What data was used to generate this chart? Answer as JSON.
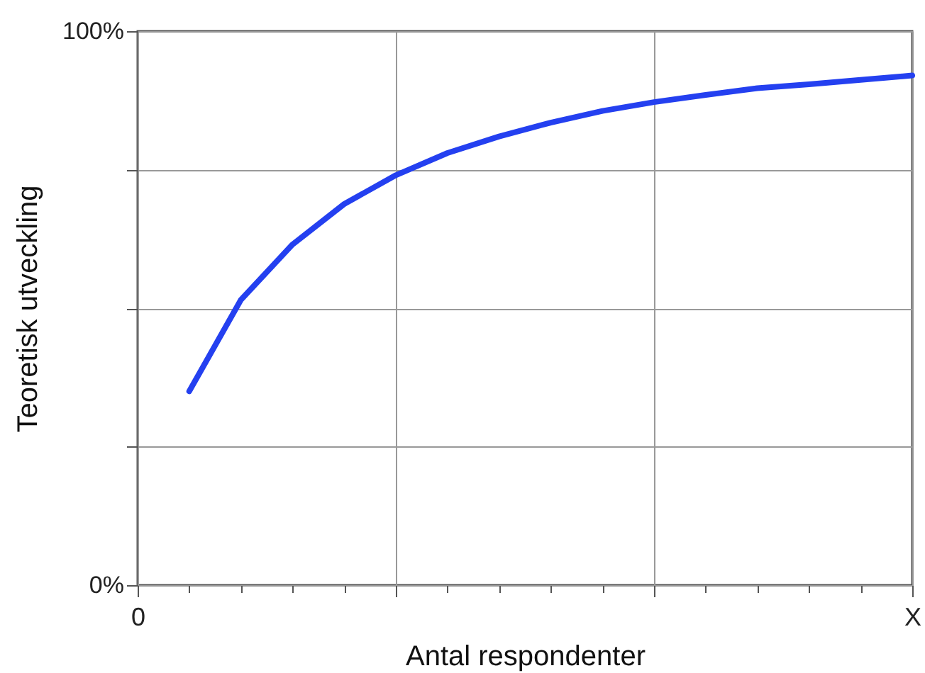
{
  "chart_data": {
    "type": "line",
    "xlabel": "Antal respondenter",
    "ylabel": "Teoretisk utveckling",
    "categories": [
      "0",
      null,
      null,
      null,
      null,
      null,
      null,
      null,
      null,
      null,
      null,
      null,
      null,
      null,
      null,
      "X"
    ],
    "series": [
      {
        "color": "#2440f0",
        "values": [
          null,
          35,
          51.5,
          61.5,
          68.8,
          74,
          78,
          81,
          83.5,
          85.6,
          87.2,
          88.5,
          89.7,
          90.4,
          91.2,
          92
        ]
      }
    ],
    "ylim": [
      0,
      100
    ],
    "yticks": [
      {
        "value": 0,
        "label": "0%"
      },
      {
        "value": 25,
        "label": null
      },
      {
        "value": 50,
        "label": null
      },
      {
        "value": 75,
        "label": null
      },
      {
        "value": 100,
        "label": "100%"
      }
    ],
    "grid": true,
    "marker": "none",
    "line_style": "solid",
    "legend": false
  }
}
